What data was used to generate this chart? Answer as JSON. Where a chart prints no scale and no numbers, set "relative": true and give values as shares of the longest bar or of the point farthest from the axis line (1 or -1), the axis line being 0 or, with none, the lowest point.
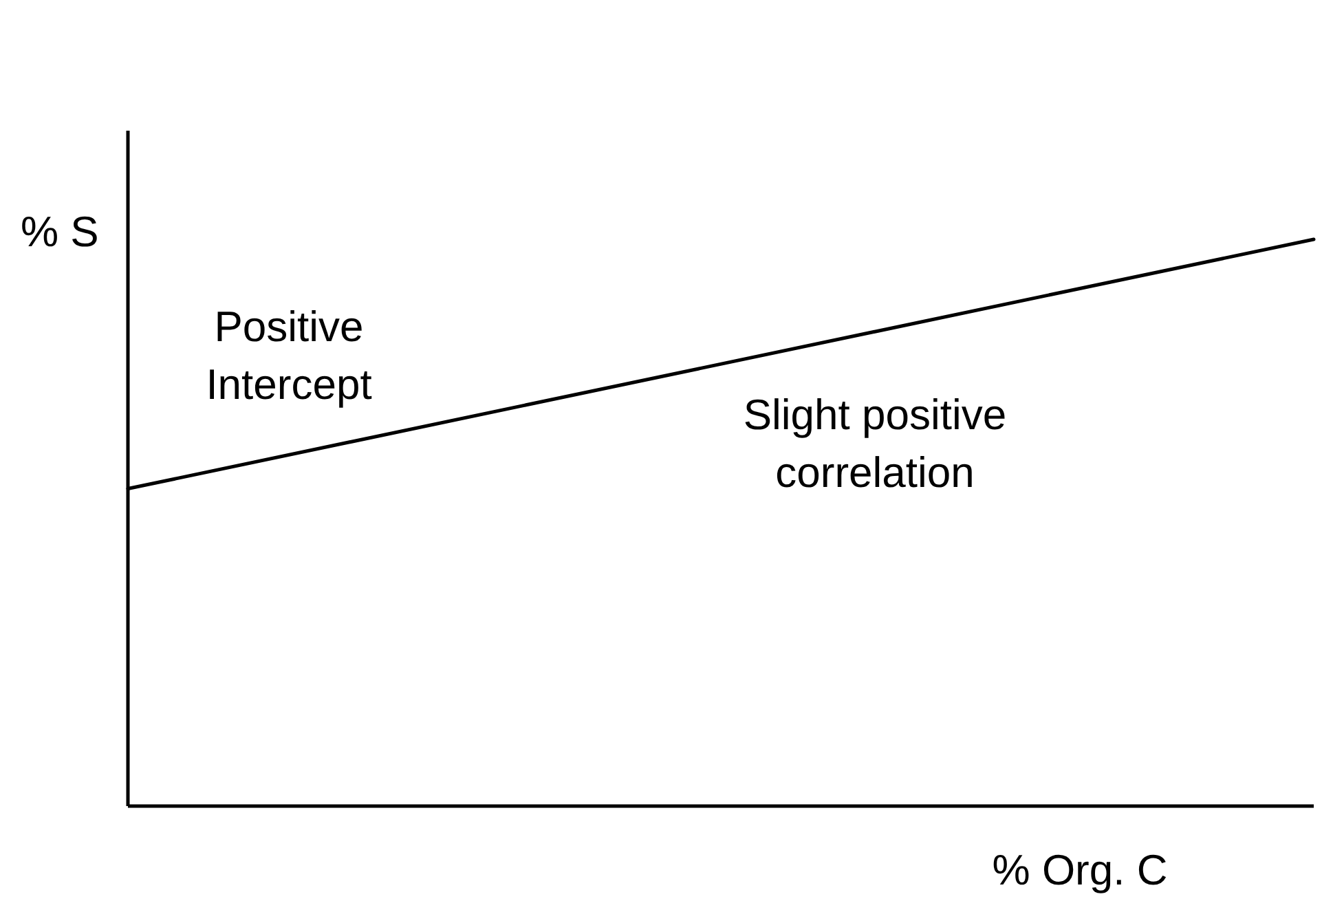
{
  "chart_data": {
    "type": "line",
    "relative": true,
    "xlabel": "% Org. C",
    "ylabel": "% S",
    "categories": [
      null,
      null
    ],
    "values": [
      0.56,
      1
    ],
    "color": "#000000",
    "annotations": [
      "Positive\nIntercept",
      "Slight positive\ncorrelation"
    ]
  }
}
